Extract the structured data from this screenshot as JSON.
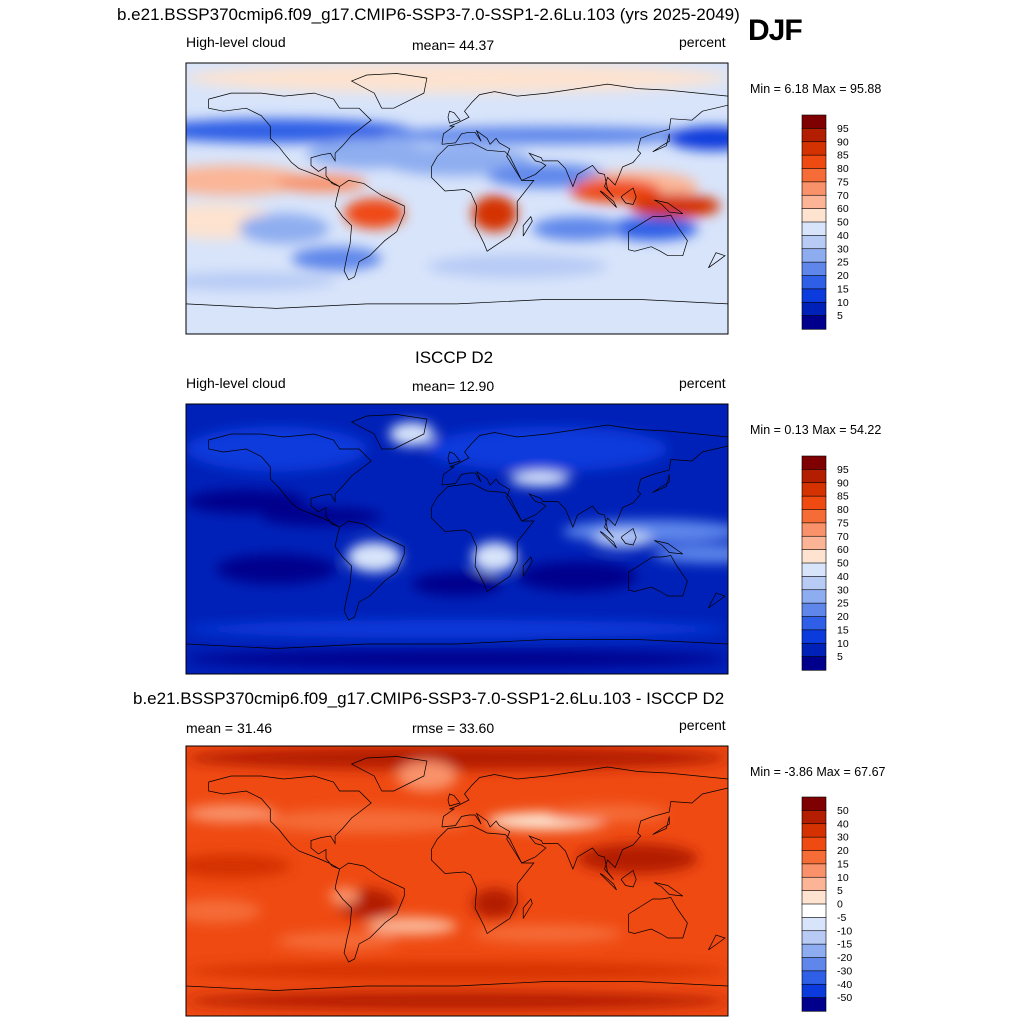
{
  "season": "DJF",
  "panels": [
    {
      "title": "b.e21.BSSP370cmip6.f09_g17.CMIP6-SSP3-7.0-SSP1-2.6Lu.103 (yrs 2025-2049)",
      "left_label": "High-level cloud",
      "center_label": "mean=  44.37",
      "right_label": "percent",
      "minmax": "Min =   6.18 Max =  95.88",
      "scale": "abs",
      "colorbar": {
        "labels": [
          "95",
          "90",
          "85",
          "80",
          "75",
          "70",
          "60",
          "50",
          "40",
          "30",
          "25",
          "20",
          "15",
          "10",
          "5"
        ],
        "colors": [
          "#7f0000",
          "#b31d00",
          "#d43200",
          "#ef4a12",
          "#f56c37",
          "#f9926a",
          "#fbb596",
          "#fde3d0",
          "#d8e4fa",
          "#b7cbf5",
          "#8eadf0",
          "#5f87eb",
          "#2f5fe6",
          "#0b3bdc",
          "#0021b8",
          "#00008c"
        ]
      }
    },
    {
      "title": "ISCCP D2",
      "left_label": "High-level cloud",
      "center_label": "mean=  12.90",
      "right_label": "percent",
      "minmax": "Min =   0.13 Max =  54.22",
      "scale": "abs",
      "colorbar": {
        "labels": [
          "95",
          "90",
          "85",
          "80",
          "75",
          "70",
          "60",
          "50",
          "40",
          "30",
          "25",
          "20",
          "15",
          "10",
          "5"
        ],
        "colors": [
          "#7f0000",
          "#b31d00",
          "#d43200",
          "#ef4a12",
          "#f56c37",
          "#f9926a",
          "#fbb596",
          "#fde3d0",
          "#d8e4fa",
          "#b7cbf5",
          "#8eadf0",
          "#5f87eb",
          "#2f5fe6",
          "#0b3bdc",
          "#0021b8",
          "#00008c"
        ]
      }
    },
    {
      "title": "b.e21.BSSP370cmip6.f09_g17.CMIP6-SSP3-7.0-SSP1-2.6Lu.103 - ISCCP D2",
      "left_label": "mean =  31.46",
      "center_label": "rmse =  33.60",
      "right_label": "percent",
      "minmax": "Min =  -3.86 Max =  67.67",
      "scale": "diff",
      "colorbar": {
        "labels": [
          "50",
          "40",
          "30",
          "20",
          "15",
          "10",
          "5",
          "0",
          "-5",
          "-10",
          "-15",
          "-20",
          "-30",
          "-40",
          "-50"
        ],
        "colors": [
          "#7f0000",
          "#b31d00",
          "#d43200",
          "#ef4a12",
          "#f56c37",
          "#f9926a",
          "#fbb596",
          "#fde3d0",
          "#ffffff",
          "#d8e4fa",
          "#b7cbf5",
          "#8eadf0",
          "#5f87eb",
          "#2f5fe6",
          "#0b3bdc",
          "#00008c"
        ]
      }
    }
  ]
}
